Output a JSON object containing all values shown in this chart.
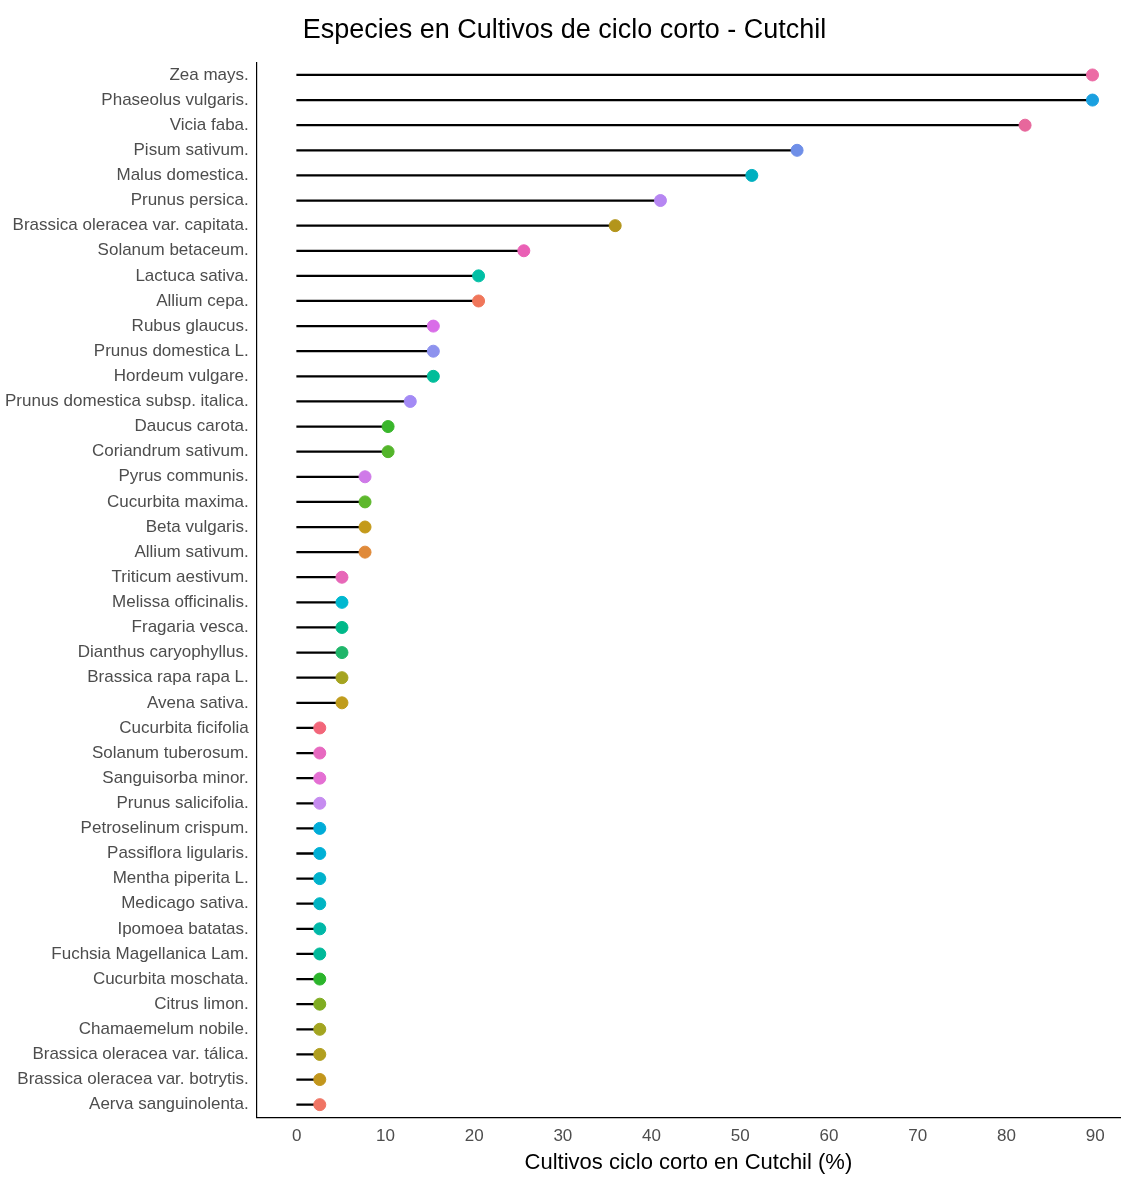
{
  "chart_data": {
    "type": "lollipop",
    "orientation": "horizontal",
    "title": "Especies en Cultivos de ciclo corto - Cutchil",
    "xlabel": "Cultivos ciclo corto en Cutchil (%)",
    "categories": [
      "Zea mays.",
      "Phaseolus vulgaris.",
      "Vicia faba.",
      "Pisum sativum.",
      "Malus domestica.",
      "Prunus persica.",
      "Brassica oleracea var. capitata.",
      "Solanum betaceum.",
      "Lactuca sativa.",
      "Allium cepa.",
      "Rubus glaucus.",
      "Prunus domestica L.",
      "Hordeum vulgare.",
      "Prunus domestica subsp. italica.",
      "Daucus carota.",
      "Coriandrum sativum.",
      "Pyrus communis.",
      "Cucurbita maxima.",
      "Beta vulgaris.",
      "Allium sativum.",
      "Triticum aestivum.",
      "Melissa officinalis.",
      "Fragaria vesca.",
      "Dianthus caryophyllus.",
      "Brassica rapa rapa L.",
      "Avena sativa.",
      "Cucurbita ficifolia",
      "Solanum tuberosum.",
      "Sanguisorba minor.",
      "Prunus salicifolia.",
      "Petroselinum crispum.",
      "Passiflora ligularis.",
      "Mentha piperita L.",
      "Medicago sativa.",
      "Ipomoea batatas.",
      "Fuchsia Magellanica Lam.",
      "Cucurbita moschata.",
      "Citrus limon.",
      "Chamaemelum nobile.",
      "Brassica oleracea var. tálica.",
      "Brassica oleracea var. botrytis.",
      "Aerva sanguinolenta."
    ],
    "values": [
      89.7,
      89.7,
      82.1,
      56.4,
      51.3,
      41.0,
      35.9,
      25.6,
      20.5,
      20.5,
      15.4,
      15.4,
      15.4,
      12.8,
      10.3,
      10.3,
      7.7,
      7.7,
      7.7,
      7.7,
      5.1,
      5.1,
      5.1,
      5.1,
      5.1,
      5.1,
      2.6,
      2.6,
      2.6,
      2.6,
      2.6,
      2.6,
      2.6,
      2.6,
      2.6,
      2.6,
      2.6,
      2.6,
      2.6,
      2.6,
      2.6,
      2.6
    ],
    "colors": [
      "#ec6ba5",
      "#1aa0e0",
      "#e7679c",
      "#6f8fe8",
      "#00b0c0",
      "#b686f2",
      "#b3951b",
      "#ea60b5",
      "#00bfa5",
      "#f0765a",
      "#d96de8",
      "#8d92ee",
      "#00bd9a",
      "#a38af5",
      "#39b62b",
      "#53b52a",
      "#cf7ae8",
      "#5db82c",
      "#c49a1a",
      "#e08a3a",
      "#e767b8",
      "#00b8d0",
      "#00b98a",
      "#1fb66a",
      "#a5a420",
      "#c09c1c",
      "#f2667a",
      "#e769c0",
      "#e46fd3",
      "#c68cf0",
      "#00acd8",
      "#00b0d6",
      "#00b2cc",
      "#00b4c3",
      "#00b8a8",
      "#00b99a",
      "#2cb52c",
      "#80ad22",
      "#a3a520",
      "#b19f1f",
      "#c2961c",
      "#f07464"
    ],
    "xlim": [
      -4.5,
      92.8
    ],
    "xticks": [
      0,
      10,
      20,
      30,
      40,
      50,
      60,
      70,
      80,
      90
    ],
    "grid": false,
    "legend": false,
    "marker": "circle"
  }
}
